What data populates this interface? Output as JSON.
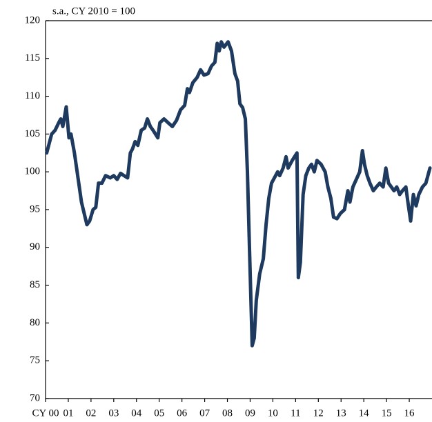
{
  "chart_data": {
    "type": "line",
    "subtitle": "s.a., CY 2010 = 100",
    "x": [
      2000.05,
      2000.27,
      2000.42,
      2000.58,
      2000.67,
      2000.76,
      2000.91,
      2001.03,
      2001.12,
      2001.27,
      2001.39,
      2001.58,
      2001.7,
      2001.82,
      2001.94,
      2002.09,
      2002.21,
      2002.33,
      2002.48,
      2002.64,
      2002.85,
      2003.0,
      2003.15,
      2003.3,
      2003.45,
      2003.61,
      2003.73,
      2003.82,
      2003.94,
      2004.06,
      2004.21,
      2004.36,
      2004.48,
      2004.61,
      2004.73,
      2004.94,
      2005.03,
      2005.21,
      2005.39,
      2005.58,
      2005.76,
      2005.94,
      2006.12,
      2006.24,
      2006.33,
      2006.48,
      2006.67,
      2006.82,
      2006.97,
      2007.15,
      2007.3,
      2007.45,
      2007.55,
      2007.64,
      2007.73,
      2007.85,
      2008.03,
      2008.18,
      2008.33,
      2008.45,
      2008.55,
      2008.67,
      2008.79,
      2008.88,
      2008.97,
      2009.09,
      2009.18,
      2009.27,
      2009.42,
      2009.58,
      2009.7,
      2009.82,
      2009.94,
      2010.12,
      2010.21,
      2010.3,
      2010.45,
      2010.58,
      2010.67,
      2010.85,
      2011.06,
      2011.12,
      2011.21,
      2011.33,
      2011.45,
      2011.58,
      2011.7,
      2011.82,
      2011.94,
      2012.12,
      2012.3,
      2012.42,
      2012.55,
      2012.67,
      2012.82,
      2012.97,
      2013.15,
      2013.3,
      2013.39,
      2013.52,
      2013.67,
      2013.82,
      2013.94,
      2014.03,
      2014.15,
      2014.27,
      2014.42,
      2014.55,
      2014.7,
      2014.85,
      2014.97,
      2015.09,
      2015.21,
      2015.33,
      2015.45,
      2015.58,
      2015.7,
      2015.85,
      2015.94,
      2016.06,
      2016.18,
      2016.3,
      2016.42,
      2016.58,
      2016.73,
      2016.91
    ],
    "series": [
      {
        "color": "#1f3a5f",
        "values": [
          102.5,
          105,
          105.5,
          106.5,
          107,
          106,
          108.6,
          104.5,
          105,
          102.5,
          100,
          96,
          94.5,
          93,
          93.5,
          95,
          95.3,
          98.5,
          98.5,
          99.5,
          99.2,
          99.5,
          99,
          99.8,
          99.5,
          99.2,
          102.5,
          103,
          104,
          103.5,
          105.5,
          105.8,
          107,
          106,
          105.5,
          104.5,
          106.5,
          107,
          106.5,
          106,
          106.8,
          108.2,
          108.8,
          111,
          110.5,
          111.8,
          112.5,
          113.5,
          112.8,
          113,
          114,
          114.5,
          117,
          116,
          117.2,
          116.5,
          117.2,
          116,
          113,
          112,
          109,
          108.5,
          107,
          100,
          90,
          77,
          78,
          83,
          86.5,
          88.5,
          93,
          96.5,
          98.5,
          99.5,
          100,
          99.5,
          100.5,
          102,
          100.5,
          101.5,
          102.5,
          86,
          88,
          97,
          99.5,
          100.5,
          101,
          100,
          101.5,
          101,
          100,
          98,
          96.5,
          94,
          93.8,
          94.5,
          95,
          97.5,
          96,
          98,
          99,
          100,
          102.8,
          101,
          99.5,
          98.5,
          97.5,
          98,
          98.5,
          98,
          100.5,
          98.5,
          98,
          97.5,
          98,
          97,
          97.5,
          98,
          96,
          93.5,
          97,
          95.5,
          97,
          98,
          98.5,
          100.5
        ]
      }
    ],
    "xlim": [
      2000,
      2017
    ],
    "xticks": [
      {
        "value": 2000,
        "label": "CY 00"
      },
      {
        "value": 2001,
        "label": "01"
      },
      {
        "value": 2002,
        "label": "02"
      },
      {
        "value": 2003,
        "label": "03"
      },
      {
        "value": 2004,
        "label": "04"
      },
      {
        "value": 2005,
        "label": "05"
      },
      {
        "value": 2006,
        "label": "06"
      },
      {
        "value": 2007,
        "label": "07"
      },
      {
        "value": 2008,
        "label": "08"
      },
      {
        "value": 2009,
        "label": "09"
      },
      {
        "value": 2010,
        "label": "10"
      },
      {
        "value": 2011,
        "label": "11"
      },
      {
        "value": 2012,
        "label": "12"
      },
      {
        "value": 2013,
        "label": "13"
      },
      {
        "value": 2014,
        "label": "14"
      },
      {
        "value": 2015,
        "label": "15"
      },
      {
        "value": 2016,
        "label": "16"
      }
    ],
    "ylim": [
      70,
      120
    ],
    "yticks": [
      70,
      75,
      80,
      85,
      90,
      95,
      100,
      105,
      110,
      115,
      120
    ],
    "grid": false
  }
}
